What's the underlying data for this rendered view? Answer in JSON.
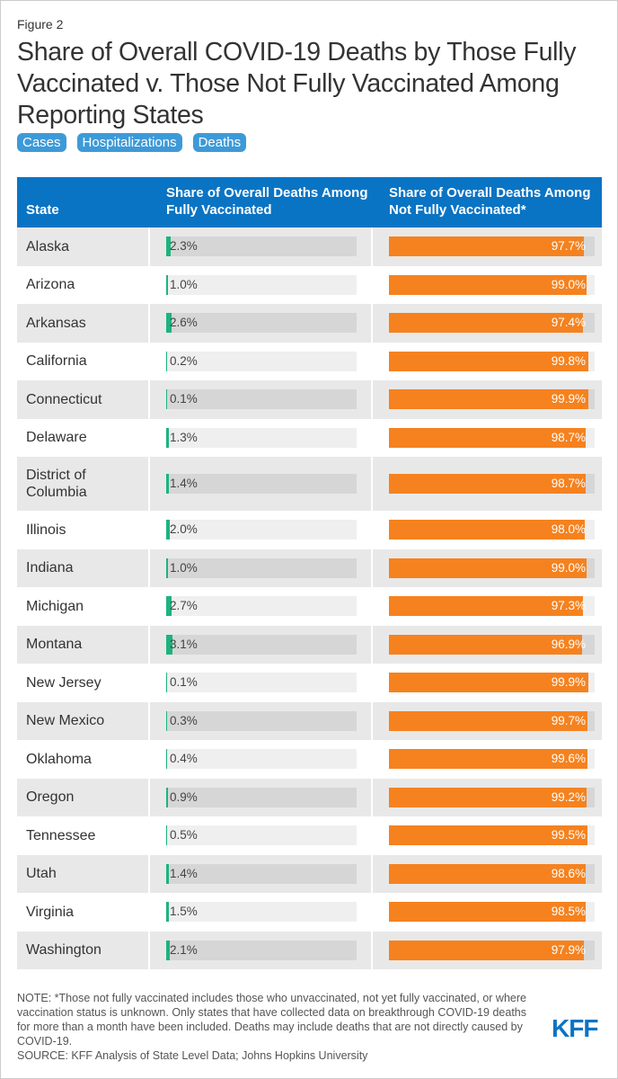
{
  "figure_label": "Figure 2",
  "title": "Share of Overall COVID-19 Deaths by Those Fully Vaccinated v. Those Not Fully Vaccinated Among Reporting States",
  "tabs": [
    "Cases",
    "Hospitalizations",
    "Deaths"
  ],
  "colors": {
    "header": "#0a74c4",
    "vaccinated": "#1db37e",
    "not_vaccinated": "#f5821f",
    "tab": "#3d9ad8"
  },
  "chart_data": {
    "type": "table",
    "title": "Share of Overall COVID-19 Deaths by Those Fully Vaccinated v. Those Not Fully Vaccinated Among Reporting States",
    "columns": [
      "State",
      "Share of Overall Deaths Among Fully Vaccinated",
      "Share of Overall Deaths Among Not Fully Vaccinated*"
    ],
    "rows": [
      {
        "state": "Alaska",
        "vax": 2.3,
        "notvax": 97.7,
        "vax_label": "2.3%",
        "notvax_label": "97.7%"
      },
      {
        "state": "Arizona",
        "vax": 1.0,
        "notvax": 99.0,
        "vax_label": "1.0%",
        "notvax_label": "99.0%"
      },
      {
        "state": "Arkansas",
        "vax": 2.6,
        "notvax": 97.4,
        "vax_label": "2.6%",
        "notvax_label": "97.4%"
      },
      {
        "state": "California",
        "vax": 0.2,
        "notvax": 99.8,
        "vax_label": "0.2%",
        "notvax_label": "99.8%"
      },
      {
        "state": "Connecticut",
        "vax": 0.1,
        "notvax": 99.9,
        "vax_label": "0.1%",
        "notvax_label": "99.9%"
      },
      {
        "state": "Delaware",
        "vax": 1.3,
        "notvax": 98.7,
        "vax_label": "1.3%",
        "notvax_label": "98.7%"
      },
      {
        "state": "District of Columbia",
        "vax": 1.4,
        "notvax": 98.7,
        "vax_label": "1.4%",
        "notvax_label": "98.7%"
      },
      {
        "state": "Illinois",
        "vax": 2.0,
        "notvax": 98.0,
        "vax_label": "2.0%",
        "notvax_label": "98.0%"
      },
      {
        "state": "Indiana",
        "vax": 1.0,
        "notvax": 99.0,
        "vax_label": "1.0%",
        "notvax_label": "99.0%"
      },
      {
        "state": "Michigan",
        "vax": 2.7,
        "notvax": 97.3,
        "vax_label": "2.7%",
        "notvax_label": "97.3%"
      },
      {
        "state": "Montana",
        "vax": 3.1,
        "notvax": 96.9,
        "vax_label": "3.1%",
        "notvax_label": "96.9%"
      },
      {
        "state": "New Jersey",
        "vax": 0.1,
        "notvax": 99.9,
        "vax_label": "0.1%",
        "notvax_label": "99.9%"
      },
      {
        "state": "New Mexico",
        "vax": 0.3,
        "notvax": 99.7,
        "vax_label": "0.3%",
        "notvax_label": "99.7%"
      },
      {
        "state": "Oklahoma",
        "vax": 0.4,
        "notvax": 99.6,
        "vax_label": "0.4%",
        "notvax_label": "99.6%"
      },
      {
        "state": "Oregon",
        "vax": 0.9,
        "notvax": 99.2,
        "vax_label": "0.9%",
        "notvax_label": "99.2%"
      },
      {
        "state": "Tennessee",
        "vax": 0.5,
        "notvax": 99.5,
        "vax_label": "0.5%",
        "notvax_label": "99.5%"
      },
      {
        "state": "Utah",
        "vax": 1.4,
        "notvax": 98.6,
        "vax_label": "1.4%",
        "notvax_label": "98.6%"
      },
      {
        "state": "Virginia",
        "vax": 1.5,
        "notvax": 98.5,
        "vax_label": "1.5%",
        "notvax_label": "98.5%"
      },
      {
        "state": "Washington",
        "vax": 2.1,
        "notvax": 97.9,
        "vax_label": "2.1%",
        "notvax_label": "97.9%"
      }
    ],
    "range": [
      0,
      100
    ]
  },
  "note": "NOTE: *Those not fully vaccinated includes those who unvaccinated, not yet fully vaccinated, or where vaccination status is unknown. Only states that have collected data on breakthrough COVID-19 deaths for more than a month have been included. Deaths may include deaths that are not directly caused by COVID-19.",
  "source": "SOURCE: KFF Analysis of State Level Data; Johns Hopkins University",
  "logo": "KFF"
}
